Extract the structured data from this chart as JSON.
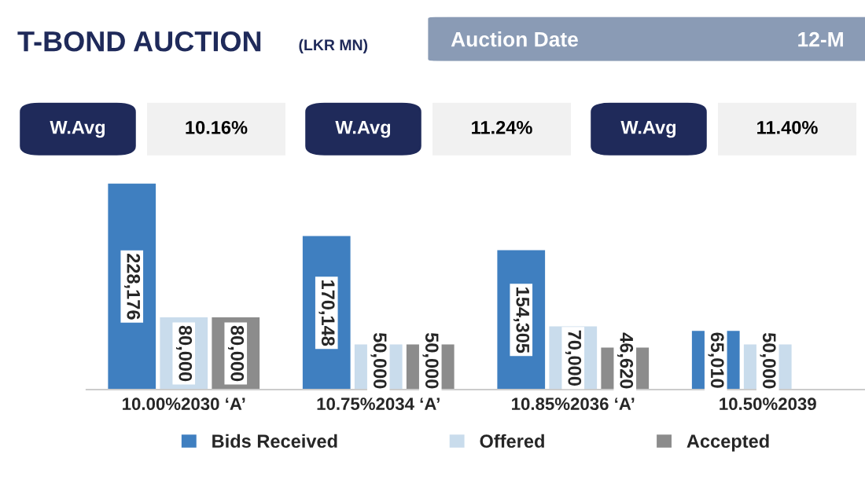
{
  "chart_data": {
    "type": "bar",
    "title": "T-BOND AUCTION",
    "subtitle": "(LKR MN)",
    "annotations": [
      "Auction Date",
      "12-M",
      "W.Avg",
      "10.16%",
      "W.Avg",
      "11.24%",
      "W.Avg",
      "11.40%"
    ],
    "categories": [
      "10.00%2030 ‘A’",
      "10.75%2034 ‘A’",
      "10.85%2036 ‘A’",
      "10.50%2039"
    ],
    "series": [
      {
        "name": "Bids Received",
        "color": "#3f7fc0",
        "values": [
          228176,
          170148,
          154305,
          65010
        ],
        "value_labels": [
          "228,176",
          "170,148",
          "154,305",
          "65,010"
        ]
      },
      {
        "name": "Offered",
        "color": "#c9dcec",
        "values": [
          80000,
          50000,
          70000,
          50000
        ],
        "value_labels": [
          "80,000",
          "50,000",
          "70,000",
          "50,000"
        ]
      },
      {
        "name": "Accepted",
        "color": "#8c8c8c",
        "values": [
          80000,
          50000,
          46620,
          null
        ],
        "value_labels": [
          "80,000",
          "50,000",
          "46,620",
          null
        ]
      }
    ],
    "legend": "bottom"
  }
}
